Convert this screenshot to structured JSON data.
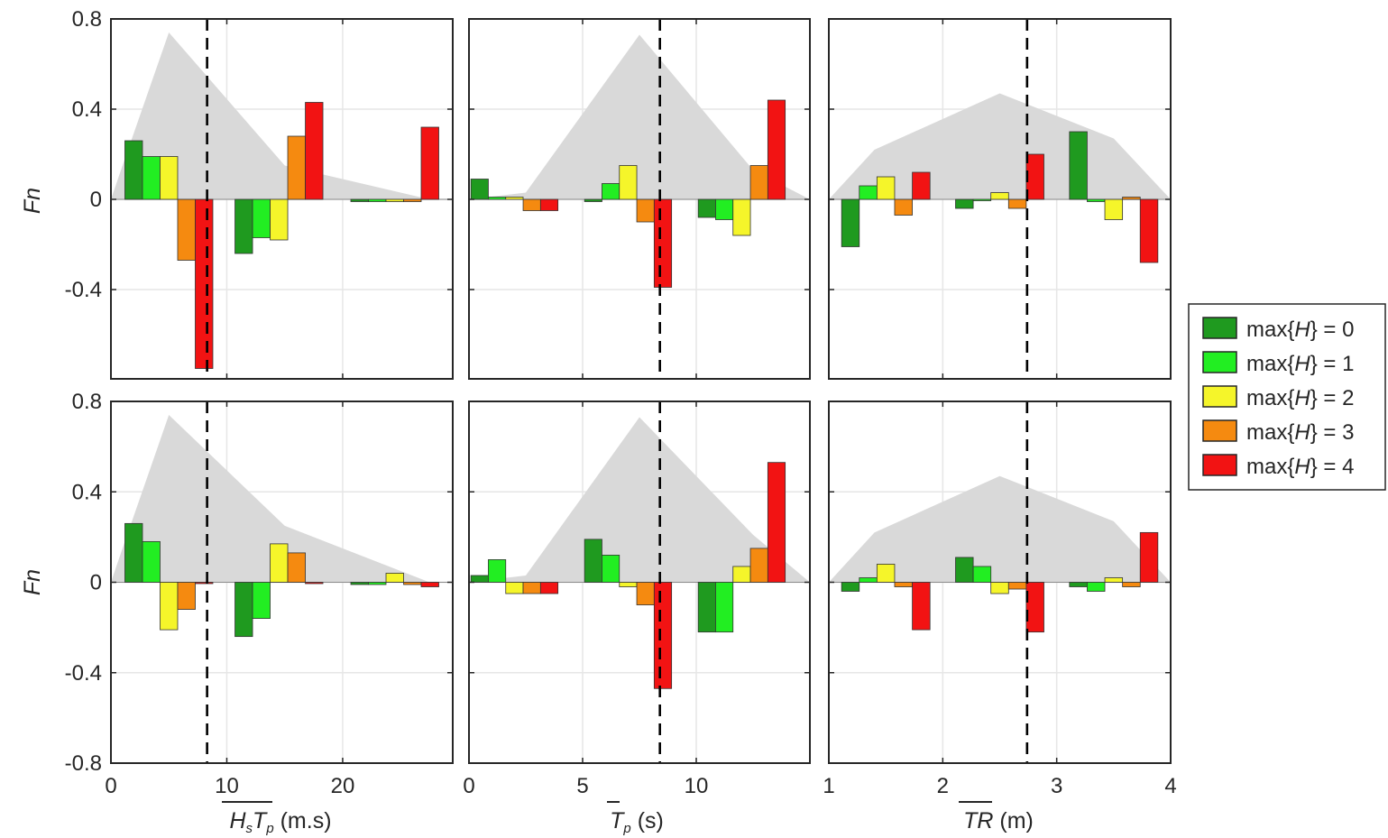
{
  "figure": {
    "ylabel": "Fn",
    "legend_position": "right",
    "hist_color": "#d9d9d9",
    "series_colors": [
      "#1f9a1f",
      "#22ee22",
      "#f5f52a",
      "#f58a10",
      "#f21313"
    ],
    "legend": {
      "prefix": "max{",
      "var": "H",
      "suffix": [
        "} = 0",
        "} = 1",
        "} = 2",
        "} = 3",
        "} = 4"
      ]
    },
    "ylim": [
      -0.8,
      0.8
    ],
    "top_ylim": [
      -0.8,
      0.8
    ],
    "yticks_top": [
      "0.8",
      "0.4",
      "0",
      "-0.4"
    ],
    "yticks_bottom": [
      "0.8",
      "0.4",
      "0",
      "-0.4",
      "-0.8"
    ],
    "xlabels": [
      {
        "base": "H",
        "sub1": "s",
        "base2": "T",
        "sub2": "p",
        "unit": " (m.s)"
      },
      {
        "base": "T",
        "sub1": "p",
        "unit": " (s)"
      },
      {
        "base": "TR",
        "unit": " (m)"
      }
    ]
  },
  "chart_data": [
    {
      "type": "bar",
      "panel": "top-left",
      "xlim": [
        0,
        29.5
      ],
      "xticks": [
        0,
        10,
        20
      ],
      "grid": true,
      "dashed_x": 8.3,
      "group_centers": [
        5.0,
        14.5,
        24.5
      ],
      "series": [
        {
          "name": "max{H} = 0",
          "values": [
            0.26,
            -0.24,
            -0.01
          ]
        },
        {
          "name": "max{H} = 1",
          "values": [
            0.19,
            -0.17,
            -0.01
          ]
        },
        {
          "name": "max{H} = 2",
          "values": [
            0.19,
            -0.18,
            -0.01
          ]
        },
        {
          "name": "max{H} = 3",
          "values": [
            -0.27,
            0.28,
            -0.01
          ]
        },
        {
          "name": "max{H} = 4",
          "values": [
            -0.75,
            0.43,
            0.32
          ]
        }
      ],
      "hist": {
        "x": [
          0,
          1.0,
          5.0,
          15.0,
          27.5
        ],
        "y": [
          0,
          0.15,
          0.74,
          0.15,
          0
        ]
      }
    },
    {
      "type": "bar",
      "panel": "top-middle",
      "xlim": [
        0,
        15
      ],
      "xticks": [
        0,
        5,
        10
      ],
      "grid": true,
      "dashed_x": 8.4,
      "group_centers": [
        2.0,
        7.0,
        12.0
      ],
      "series": [
        {
          "name": "max{H} = 0",
          "values": [
            0.09,
            -0.01,
            -0.08
          ]
        },
        {
          "name": "max{H} = 1",
          "values": [
            0.01,
            0.07,
            -0.09
          ]
        },
        {
          "name": "max{H} = 2",
          "values": [
            0.01,
            0.15,
            -0.16
          ]
        },
        {
          "name": "max{H} = 3",
          "values": [
            -0.05,
            -0.1,
            0.15
          ]
        },
        {
          "name": "max{H} = 4",
          "values": [
            -0.05,
            -0.39,
            0.44
          ]
        }
      ],
      "hist": {
        "x": [
          0,
          2.5,
          7.5,
          12.5,
          15
        ],
        "y": [
          0,
          0.03,
          0.73,
          0.13,
          0
        ]
      }
    },
    {
      "type": "bar",
      "panel": "top-right",
      "xlim": [
        1,
        4
      ],
      "xticks": [
        1,
        2,
        3,
        4
      ],
      "grid": true,
      "dashed_x": 2.74,
      "group_centers": [
        1.5,
        2.5,
        3.5
      ],
      "series": [
        {
          "name": "max{H} = 0",
          "values": [
            -0.21,
            -0.04,
            0.3
          ]
        },
        {
          "name": "max{H} = 1",
          "values": [
            0.06,
            0.0,
            -0.01
          ]
        },
        {
          "name": "max{H} = 2",
          "values": [
            0.1,
            0.03,
            -0.09
          ]
        },
        {
          "name": "max{H} = 3",
          "values": [
            -0.07,
            -0.04,
            0.01
          ]
        },
        {
          "name": "max{H} = 4",
          "values": [
            0.12,
            0.2,
            -0.28
          ]
        }
      ],
      "hist": {
        "x": [
          1,
          1.4,
          2.5,
          3.5,
          4
        ],
        "y": [
          0,
          0.22,
          0.47,
          0.27,
          0
        ]
      }
    },
    {
      "type": "bar",
      "panel": "bottom-left",
      "xlim": [
        0,
        29.5
      ],
      "xticks": [
        0,
        10,
        20
      ],
      "grid": true,
      "dashed_x": 8.3,
      "group_centers": [
        5.0,
        14.5,
        24.5
      ],
      "series": [
        {
          "name": "max{H} = 0",
          "values": [
            0.26,
            -0.24,
            -0.01
          ]
        },
        {
          "name": "max{H} = 1",
          "values": [
            0.18,
            -0.16,
            -0.01
          ]
        },
        {
          "name": "max{H} = 2",
          "values": [
            -0.21,
            0.17,
            0.04
          ]
        },
        {
          "name": "max{H} = 3",
          "values": [
            -0.12,
            0.13,
            -0.01
          ]
        },
        {
          "name": "max{H} = 4",
          "values": [
            0.0,
            0.0,
            -0.02
          ]
        }
      ],
      "hist": {
        "x": [
          0,
          1.0,
          5.0,
          15.0,
          27.5
        ],
        "y": [
          0,
          0.15,
          0.74,
          0.25,
          0
        ]
      }
    },
    {
      "type": "bar",
      "panel": "bottom-middle",
      "xlim": [
        0,
        15
      ],
      "xticks": [
        0,
        5,
        10
      ],
      "grid": true,
      "dashed_x": 8.4,
      "group_centers": [
        2.0,
        7.0,
        12.0
      ],
      "series": [
        {
          "name": "max{H} = 0",
          "values": [
            0.03,
            0.19,
            -0.22
          ]
        },
        {
          "name": "max{H} = 1",
          "values": [
            0.1,
            0.12,
            -0.22
          ]
        },
        {
          "name": "max{H} = 2",
          "values": [
            -0.05,
            -0.02,
            0.07
          ]
        },
        {
          "name": "max{H} = 3",
          "values": [
            -0.05,
            -0.1,
            0.15
          ]
        },
        {
          "name": "max{H} = 4",
          "values": [
            -0.05,
            -0.47,
            0.53
          ]
        }
      ],
      "hist": {
        "x": [
          0,
          2.5,
          7.5,
          12.5,
          15
        ],
        "y": [
          0,
          0.03,
          0.73,
          0.21,
          0
        ]
      }
    },
    {
      "type": "bar",
      "panel": "bottom-right",
      "xlim": [
        1,
        4
      ],
      "xticks": [
        1,
        2,
        3,
        4
      ],
      "grid": true,
      "dashed_x": 2.74,
      "group_centers": [
        1.5,
        2.5,
        3.5
      ],
      "series": [
        {
          "name": "max{H} = 0",
          "values": [
            -0.04,
            0.11,
            -0.02
          ]
        },
        {
          "name": "max{H} = 1",
          "values": [
            0.02,
            0.07,
            -0.04
          ]
        },
        {
          "name": "max{H} = 2",
          "values": [
            0.08,
            -0.05,
            0.02
          ]
        },
        {
          "name": "max{H} = 3",
          "values": [
            -0.02,
            -0.03,
            -0.02
          ]
        },
        {
          "name": "max{H} = 4",
          "values": [
            -0.21,
            -0.22,
            0.22
          ]
        }
      ],
      "hist": {
        "x": [
          1,
          1.4,
          2.5,
          3.5,
          4
        ],
        "y": [
          0,
          0.22,
          0.47,
          0.27,
          0
        ]
      }
    }
  ]
}
